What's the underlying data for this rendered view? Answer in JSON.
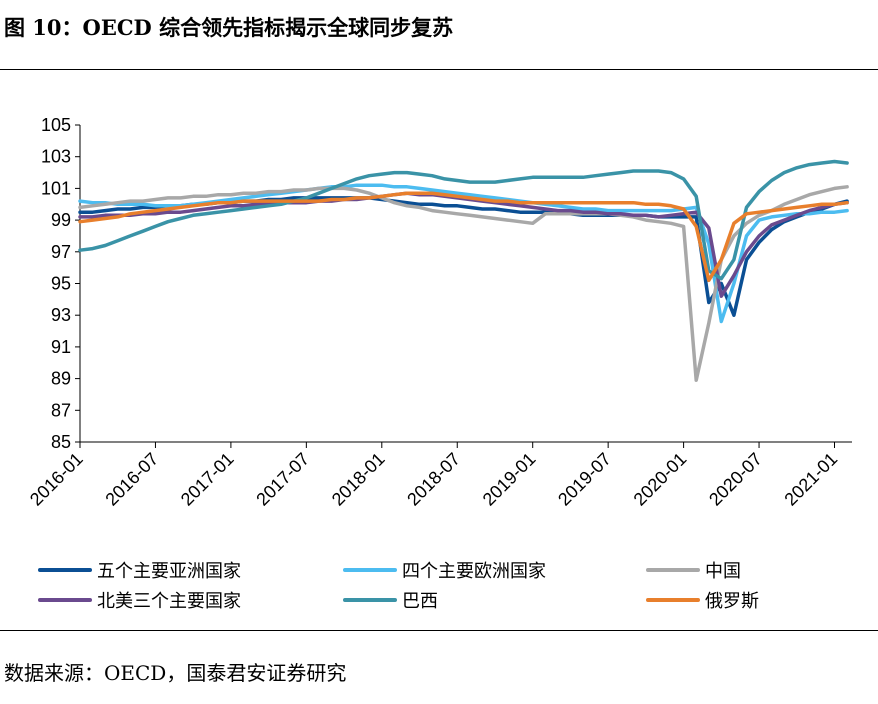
{
  "title": "图 10：OECD 综合领先指标揭示全球同步复苏",
  "source": "数据来源：OECD，国泰君安证券研究",
  "chart_data": {
    "type": "line",
    "x": [
      "2016-01",
      "2016-02",
      "2016-03",
      "2016-04",
      "2016-05",
      "2016-06",
      "2016-07",
      "2016-08",
      "2016-09",
      "2016-10",
      "2016-11",
      "2016-12",
      "2017-01",
      "2017-02",
      "2017-03",
      "2017-04",
      "2017-05",
      "2017-06",
      "2017-07",
      "2017-08",
      "2017-09",
      "2017-10",
      "2017-11",
      "2017-12",
      "2018-01",
      "2018-02",
      "2018-03",
      "2018-04",
      "2018-05",
      "2018-06",
      "2018-07",
      "2018-08",
      "2018-09",
      "2018-10",
      "2018-11",
      "2018-12",
      "2019-01",
      "2019-02",
      "2019-03",
      "2019-04",
      "2019-05",
      "2019-06",
      "2019-07",
      "2019-08",
      "2019-09",
      "2019-10",
      "2019-11",
      "2019-12",
      "2020-01",
      "2020-02",
      "2020-03",
      "2020-04",
      "2020-05",
      "2020-06",
      "2020-07",
      "2020-08",
      "2020-09",
      "2020-10",
      "2020-11",
      "2020-12",
      "2021-01",
      "2021-02"
    ],
    "x_ticks": [
      "2016-01",
      "2016-07",
      "2017-01",
      "2017-07",
      "2018-01",
      "2018-07",
      "2019-01",
      "2019-07",
      "2020-01",
      "2020-07",
      "2021-01"
    ],
    "ylim": [
      85,
      105
    ],
    "y_ticks": [
      85,
      87,
      89,
      91,
      93,
      95,
      97,
      99,
      101,
      103,
      105
    ],
    "grid": false,
    "legend_position": "bottom",
    "series": [
      {
        "name": "五个主要亚洲国家",
        "color": "#0b4f94",
        "values": [
          99.5,
          99.5,
          99.6,
          99.7,
          99.7,
          99.8,
          99.8,
          99.9,
          99.9,
          100.0,
          100.0,
          100.1,
          100.1,
          100.2,
          100.2,
          100.3,
          100.3,
          100.4,
          100.4,
          100.4,
          100.4,
          100.4,
          100.4,
          100.4,
          100.3,
          100.2,
          100.1,
          100.0,
          100.0,
          99.9,
          99.9,
          99.8,
          99.7,
          99.7,
          99.6,
          99.5,
          99.5,
          99.5,
          99.4,
          99.4,
          99.3,
          99.3,
          99.3,
          99.3,
          99.3,
          99.3,
          99.2,
          99.2,
          99.2,
          99.2,
          93.8,
          95.0,
          93.0,
          96.5,
          97.6,
          98.4,
          98.9,
          99.2,
          99.5,
          99.7,
          100.0,
          100.2
        ]
      },
      {
        "name": "四个主要欧洲国家",
        "color": "#4cbcf0",
        "values": [
          100.2,
          100.1,
          100.1,
          100.0,
          100.0,
          100.0,
          99.9,
          99.9,
          99.9,
          100.0,
          100.1,
          100.2,
          100.3,
          100.4,
          100.5,
          100.6,
          100.7,
          100.8,
          100.9,
          101.0,
          101.1,
          101.1,
          101.2,
          101.2,
          101.2,
          101.1,
          101.1,
          101.0,
          100.9,
          100.8,
          100.7,
          100.6,
          100.5,
          100.4,
          100.3,
          100.2,
          100.1,
          100.0,
          99.9,
          99.8,
          99.7,
          99.7,
          99.6,
          99.6,
          99.6,
          99.6,
          99.6,
          99.6,
          99.7,
          99.8,
          97.5,
          92.6,
          95.0,
          98.0,
          99.0,
          99.2,
          99.3,
          99.4,
          99.4,
          99.5,
          99.5,
          99.6
        ]
      },
      {
        "name": "中国",
        "color": "#a8a8a8",
        "values": [
          99.8,
          99.9,
          100.0,
          100.1,
          100.2,
          100.2,
          100.3,
          100.4,
          100.4,
          100.5,
          100.5,
          100.6,
          100.6,
          100.7,
          100.7,
          100.8,
          100.8,
          100.9,
          100.9,
          101.0,
          101.0,
          101.0,
          100.9,
          100.7,
          100.4,
          100.1,
          99.9,
          99.8,
          99.6,
          99.5,
          99.4,
          99.3,
          99.2,
          99.1,
          99.0,
          98.9,
          98.8,
          99.4,
          99.4,
          99.4,
          99.4,
          99.4,
          99.4,
          99.3,
          99.2,
          99.0,
          98.9,
          98.8,
          98.6,
          88.9,
          92.5,
          96.5,
          98.0,
          98.8,
          99.3,
          99.6,
          100.0,
          100.3,
          100.6,
          100.8,
          101.0,
          101.1
        ]
      },
      {
        "name": "北美三个主要国家",
        "color": "#6a4a8e",
        "values": [
          99.2,
          99.2,
          99.3,
          99.3,
          99.3,
          99.4,
          99.4,
          99.5,
          99.5,
          99.6,
          99.7,
          99.8,
          99.9,
          99.9,
          100.0,
          100.0,
          100.1,
          100.1,
          100.1,
          100.2,
          100.2,
          100.3,
          100.3,
          100.4,
          100.5,
          100.6,
          100.7,
          100.6,
          100.6,
          100.5,
          100.4,
          100.3,
          100.2,
          100.1,
          100.0,
          99.9,
          99.8,
          99.7,
          99.6,
          99.6,
          99.5,
          99.5,
          99.4,
          99.4,
          99.3,
          99.3,
          99.2,
          99.3,
          99.4,
          99.5,
          98.5,
          94.2,
          95.5,
          97.0,
          98.0,
          98.7,
          99.0,
          99.3,
          99.6,
          99.8,
          100.0,
          100.1
        ]
      },
      {
        "name": "巴西",
        "color": "#3a93a7",
        "values": [
          97.1,
          97.2,
          97.4,
          97.7,
          98.0,
          98.3,
          98.6,
          98.9,
          99.1,
          99.3,
          99.4,
          99.5,
          99.6,
          99.7,
          99.8,
          99.9,
          100.0,
          100.2,
          100.4,
          100.7,
          101.0,
          101.3,
          101.6,
          101.8,
          101.9,
          102.0,
          102.0,
          101.9,
          101.8,
          101.6,
          101.5,
          101.4,
          101.4,
          101.4,
          101.5,
          101.6,
          101.7,
          101.7,
          101.7,
          101.7,
          101.7,
          101.8,
          101.9,
          102.0,
          102.1,
          102.1,
          102.1,
          102.0,
          101.6,
          100.5,
          95.8,
          95.3,
          96.5,
          99.8,
          100.8,
          101.5,
          102.0,
          102.3,
          102.5,
          102.6,
          102.7,
          102.6
        ]
      },
      {
        "name": "俄罗斯",
        "color": "#e87f2c",
        "values": [
          98.9,
          99.0,
          99.1,
          99.2,
          99.4,
          99.5,
          99.6,
          99.7,
          99.8,
          99.9,
          100.0,
          100.1,
          100.1,
          100.2,
          100.2,
          100.2,
          100.2,
          100.2,
          100.2,
          100.2,
          100.3,
          100.3,
          100.4,
          100.4,
          100.5,
          100.6,
          100.7,
          100.7,
          100.7,
          100.6,
          100.5,
          100.4,
          100.3,
          100.2,
          100.2,
          100.1,
          100.1,
          100.1,
          100.1,
          100.1,
          100.1,
          100.1,
          100.1,
          100.1,
          100.1,
          100.0,
          100.0,
          99.9,
          99.7,
          98.6,
          95.2,
          96.5,
          98.8,
          99.4,
          99.5,
          99.6,
          99.7,
          99.8,
          99.9,
          100.0,
          100.0,
          100.1
        ]
      }
    ]
  }
}
